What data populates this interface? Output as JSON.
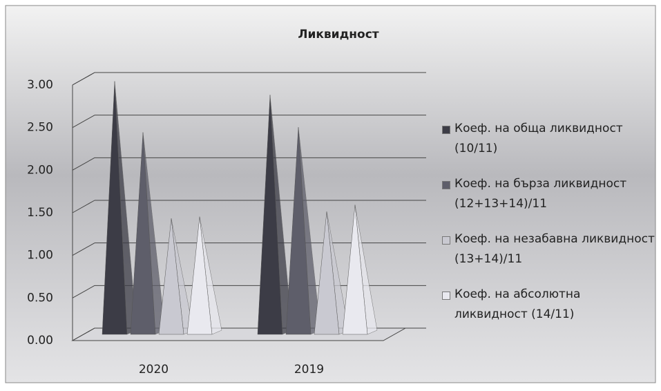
{
  "chart_data": {
    "type": "pyramid3d",
    "title": "Ликвидност",
    "categories": [
      "2020",
      "2019"
    ],
    "series": [
      {
        "name": "Коеф. на обща ликвидност (10/11)",
        "color": "#3c3c46",
        "values": [
          2.97,
          2.81
        ]
      },
      {
        "name": "Коеф. на бърза ликвидност (12+13+14)/11",
        "color": "#5e5e6a",
        "values": [
          2.37,
          2.43
        ]
      },
      {
        "name": "Коеф. на незабавна ликвидност (13+14)/11",
        "color": "#c9c9d1",
        "values": [
          1.36,
          1.44
        ]
      },
      {
        "name": "Коеф. на абсолютна ликвидност (14/11)",
        "color": "#e9e9ef",
        "values": [
          1.38,
          1.52
        ]
      }
    ],
    "ylim": [
      0,
      3
    ],
    "yticks": [
      {
        "value": 0,
        "label": "0.00"
      },
      {
        "value": 0.5,
        "label": "0.50"
      },
      {
        "value": 1,
        "label": "1.00"
      },
      {
        "value": 1.5,
        "label": "1.50"
      },
      {
        "value": 2,
        "label": "2.00"
      },
      {
        "value": 2.5,
        "label": "2.50"
      },
      {
        "value": 3,
        "label": "3.00"
      }
    ],
    "grid": true,
    "legend": "right"
  }
}
